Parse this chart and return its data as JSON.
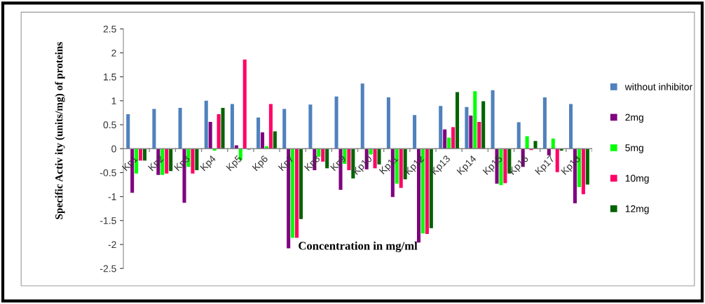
{
  "chart_data": {
    "type": "bar",
    "ylabel": "Specific Activ ity (units/mg) of proteins",
    "xlabel": "Concentration in mg/ml",
    "categories": [
      "Kp1",
      "Kp2",
      "Kp3",
      "Kp4",
      "Kp5",
      "Kp6",
      "Kp7",
      "Kp8",
      "Kp9",
      "Kp10",
      "Kp11",
      "Kp12",
      "Kp13",
      "Kp14",
      "Kp15",
      "Kp16",
      "Kp17",
      "Kp18"
    ],
    "series": [
      {
        "name": "without inhibitor",
        "color": "#4f81bd",
        "values": [
          0.72,
          0.83,
          0.85,
          1.0,
          0.93,
          0.65,
          0.83,
          0.92,
          1.09,
          1.36,
          1.07,
          0.7,
          0.89,
          0.87,
          1.22,
          0.55,
          1.07,
          0.93
        ]
      },
      {
        "name": "2mg",
        "color": "#7f007f",
        "values": [
          -0.92,
          -0.55,
          -1.13,
          0.56,
          0.07,
          0.34,
          -2.08,
          -0.45,
          -0.86,
          -0.43,
          -1.01,
          -1.96,
          0.4,
          0.69,
          -0.73,
          -0.38,
          -0.14,
          -1.14
        ]
      },
      {
        "name": "5mg",
        "color": "#00ff00",
        "values": [
          -0.52,
          -0.55,
          -0.38,
          -0.04,
          -0.24,
          0.05,
          -1.86,
          -0.17,
          -0.32,
          -0.12,
          -0.73,
          -1.77,
          0.23,
          1.2,
          -0.76,
          0.26,
          0.21,
          -0.8
        ]
      },
      {
        "name": "10mg",
        "color": "#ff0066",
        "values": [
          -0.25,
          -0.52,
          -0.52,
          0.72,
          1.86,
          0.93,
          -1.86,
          -0.27,
          -0.45,
          -0.41,
          -0.82,
          -1.78,
          0.45,
          0.56,
          -0.72,
          -0.03,
          -0.49,
          -0.95
        ]
      },
      {
        "name": "12mg",
        "color": "#006400",
        "values": [
          -0.25,
          -0.47,
          -0.45,
          0.85,
          -0.02,
          0.36,
          -1.47,
          -0.41,
          -0.62,
          -0.33,
          -0.64,
          -1.66,
          1.18,
          0.99,
          -0.52,
          0.16,
          -0.04,
          -0.75
        ]
      }
    ],
    "ylim": [
      -2.5,
      2.5
    ],
    "yticks": [
      -2.5,
      -2,
      -1.5,
      -1,
      -0.5,
      0,
      0.5,
      1,
      1.5,
      2,
      2.5
    ],
    "legend": "right"
  }
}
